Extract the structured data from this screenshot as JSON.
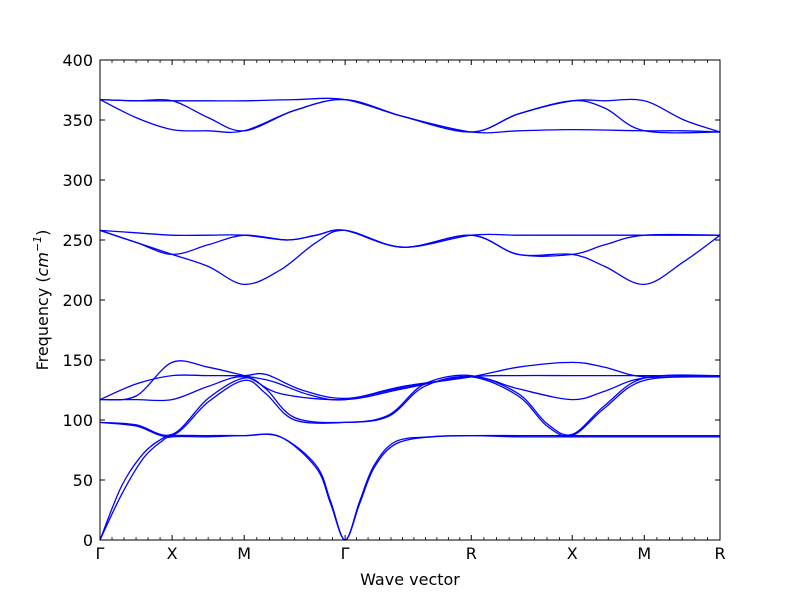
{
  "chart_data": {
    "type": "line",
    "xlabel": "Wave vector",
    "ylabel_prefix": "Frequency (",
    "ylabel_unit_base": "cm",
    "ylabel_unit_exp": "−1",
    "ylabel_suffix": ")",
    "ylim": [
      0,
      400
    ],
    "yticks": [
      0,
      50,
      100,
      150,
      200,
      250,
      300,
      350,
      400
    ],
    "xlim": [
      0,
      8.6
    ],
    "high_symmetry_points": [
      {
        "label": "Γ",
        "x": 0
      },
      {
        "label": "X",
        "x": 1
      },
      {
        "label": "M",
        "x": 2
      },
      {
        "label": "Γ",
        "x": 3.4
      },
      {
        "label": "R",
        "x": 5.15
      },
      {
        "label": "X",
        "x": 6.55
      },
      {
        "label": "M",
        "x": 7.55
      },
      {
        "label": "R",
        "x": 8.6
      }
    ],
    "line_color": "#0000ff",
    "grid": false,
    "series": [
      {
        "values": [
          [
            0,
            0
          ],
          [
            0.3,
            38
          ],
          [
            0.6,
            68
          ],
          [
            0.85,
            82
          ],
          [
            1,
            86
          ],
          [
            1.5,
            86
          ],
          [
            2,
            87
          ],
          [
            2.5,
            86
          ],
          [
            3.0,
            60
          ],
          [
            3.2,
            30
          ],
          [
            3.4,
            0
          ],
          [
            3.6,
            30
          ],
          [
            3.8,
            60
          ],
          [
            4.1,
            80
          ],
          [
            4.6,
            86
          ],
          [
            5.15,
            87
          ],
          [
            5.8,
            86
          ],
          [
            6.55,
            86
          ],
          [
            7.55,
            86
          ],
          [
            8.6,
            86
          ]
        ]
      },
      {
        "values": [
          [
            0,
            0
          ],
          [
            0.3,
            45
          ],
          [
            0.6,
            72
          ],
          [
            0.85,
            84
          ],
          [
            1,
            87
          ],
          [
            1.5,
            87
          ],
          [
            2,
            87
          ],
          [
            2.5,
            86
          ],
          [
            3.0,
            62
          ],
          [
            3.2,
            32
          ],
          [
            3.4,
            0
          ],
          [
            3.6,
            32
          ],
          [
            3.8,
            62
          ],
          [
            4.1,
            82
          ],
          [
            4.6,
            86
          ],
          [
            5.15,
            87
          ],
          [
            5.8,
            87
          ],
          [
            6.55,
            87
          ],
          [
            7.55,
            87
          ],
          [
            8.6,
            87
          ]
        ]
      },
      {
        "values": [
          [
            0,
            98
          ],
          [
            0.5,
            95
          ],
          [
            1,
            87
          ],
          [
            1.5,
            115
          ],
          [
            2,
            133
          ],
          [
            2.3,
            122
          ],
          [
            2.7,
            100
          ],
          [
            3.4,
            98
          ],
          [
            4.0,
            103
          ],
          [
            4.5,
            128
          ],
          [
            5.15,
            136
          ],
          [
            5.8,
            120
          ],
          [
            6.2,
            95
          ],
          [
            6.55,
            87
          ],
          [
            7.0,
            110
          ],
          [
            7.55,
            133
          ],
          [
            8.6,
            136
          ]
        ]
      },
      {
        "values": [
          [
            0,
            98
          ],
          [
            0.5,
            96
          ],
          [
            1,
            88
          ],
          [
            1.5,
            118
          ],
          [
            2,
            135
          ],
          [
            2.3,
            126
          ],
          [
            2.7,
            102
          ],
          [
            3.4,
            98
          ],
          [
            4.0,
            104
          ],
          [
            4.5,
            130
          ],
          [
            5.15,
            137
          ],
          [
            5.8,
            122
          ],
          [
            6.2,
            97
          ],
          [
            6.55,
            88
          ],
          [
            7.0,
            112
          ],
          [
            7.55,
            135
          ],
          [
            8.6,
            137
          ]
        ]
      },
      {
        "values": [
          [
            0,
            117
          ],
          [
            0.5,
            117
          ],
          [
            1,
            117
          ],
          [
            1.5,
            128
          ],
          [
            2,
            136
          ],
          [
            2.5,
            122
          ],
          [
            3.4,
            117
          ],
          [
            4.2,
            126
          ],
          [
            5.15,
            136
          ],
          [
            5.8,
            126
          ],
          [
            6.55,
            117
          ],
          [
            7.0,
            124
          ],
          [
            7.55,
            135
          ],
          [
            8.6,
            136
          ]
        ]
      },
      {
        "values": [
          [
            0,
            117
          ],
          [
            0.5,
            130
          ],
          [
            1,
            137
          ],
          [
            1.5,
            137
          ],
          [
            2,
            137
          ],
          [
            2.3,
            138
          ],
          [
            2.8,
            125
          ],
          [
            3.4,
            118
          ],
          [
            4.2,
            127
          ],
          [
            5.15,
            136
          ],
          [
            5.8,
            137
          ],
          [
            6.55,
            137
          ],
          [
            7.55,
            137
          ],
          [
            8.6,
            137
          ]
        ]
      },
      {
        "values": [
          [
            0,
            117
          ],
          [
            0.5,
            120
          ],
          [
            1,
            148
          ],
          [
            1.5,
            144
          ],
          [
            2,
            137
          ],
          [
            2.4,
            132
          ],
          [
            2.9,
            121
          ],
          [
            3.4,
            117
          ],
          [
            4.2,
            128
          ],
          [
            5.15,
            136
          ],
          [
            5.8,
            144
          ],
          [
            6.55,
            148
          ],
          [
            7.0,
            144
          ],
          [
            7.55,
            136
          ],
          [
            8.6,
            137
          ]
        ]
      },
      {
        "values": [
          [
            0,
            258
          ],
          [
            0.5,
            248
          ],
          [
            1,
            238
          ],
          [
            1.5,
            228
          ],
          [
            2,
            213
          ],
          [
            2.5,
            225
          ],
          [
            3.0,
            248
          ],
          [
            3.4,
            258
          ],
          [
            4.2,
            244
          ],
          [
            5.15,
            254
          ],
          [
            5.8,
            238
          ],
          [
            6.55,
            238
          ],
          [
            7.0,
            228
          ],
          [
            7.55,
            213
          ],
          [
            8.1,
            232
          ],
          [
            8.6,
            254
          ]
        ]
      },
      {
        "values": [
          [
            0,
            258
          ],
          [
            0.5,
            248
          ],
          [
            1,
            238
          ],
          [
            1.5,
            246
          ],
          [
            2,
            254
          ],
          [
            2.6,
            250
          ],
          [
            3.0,
            254
          ],
          [
            3.4,
            258
          ],
          [
            4.2,
            244
          ],
          [
            5.15,
            254
          ],
          [
            5.8,
            238
          ],
          [
            6.55,
            238
          ],
          [
            7.0,
            246
          ],
          [
            7.55,
            254
          ],
          [
            8.6,
            254
          ]
        ]
      },
      {
        "values": [
          [
            0,
            258
          ],
          [
            0.5,
            256
          ],
          [
            1,
            254
          ],
          [
            1.5,
            254
          ],
          [
            2,
            254
          ],
          [
            2.6,
            250
          ],
          [
            3.0,
            254
          ],
          [
            3.4,
            258
          ],
          [
            4.2,
            244
          ],
          [
            5.15,
            254
          ],
          [
            5.8,
            254
          ],
          [
            6.55,
            254
          ],
          [
            7.55,
            254
          ],
          [
            8.6,
            254
          ]
        ]
      },
      {
        "values": [
          [
            0,
            367
          ],
          [
            0.5,
            352
          ],
          [
            1,
            342
          ],
          [
            1.5,
            341
          ],
          [
            2,
            341
          ],
          [
            2.7,
            358
          ],
          [
            3.4,
            367
          ],
          [
            4.2,
            353
          ],
          [
            5.15,
            340
          ],
          [
            5.8,
            341
          ],
          [
            6.55,
            342
          ],
          [
            7.55,
            341
          ],
          [
            8.1,
            341
          ],
          [
            8.6,
            340
          ]
        ]
      },
      {
        "values": [
          [
            0,
            367
          ],
          [
            0.5,
            366
          ],
          [
            1,
            366
          ],
          [
            1.5,
            352
          ],
          [
            2,
            341
          ],
          [
            2.7,
            358
          ],
          [
            3.4,
            367
          ],
          [
            4.2,
            353
          ],
          [
            5.15,
            340
          ],
          [
            5.8,
            355
          ],
          [
            6.55,
            366
          ],
          [
            7.0,
            360
          ],
          [
            7.55,
            341
          ],
          [
            8.6,
            340
          ]
        ]
      },
      {
        "values": [
          [
            0,
            367
          ],
          [
            0.5,
            366
          ],
          [
            1,
            366
          ],
          [
            1.5,
            366
          ],
          [
            2,
            366
          ],
          [
            2.7,
            367
          ],
          [
            3.4,
            367
          ],
          [
            4.2,
            353
          ],
          [
            5.15,
            340
          ],
          [
            5.8,
            355
          ],
          [
            6.55,
            366
          ],
          [
            7.0,
            366
          ],
          [
            7.55,
            366
          ],
          [
            8.1,
            350
          ],
          [
            8.6,
            340
          ]
        ]
      }
    ]
  }
}
